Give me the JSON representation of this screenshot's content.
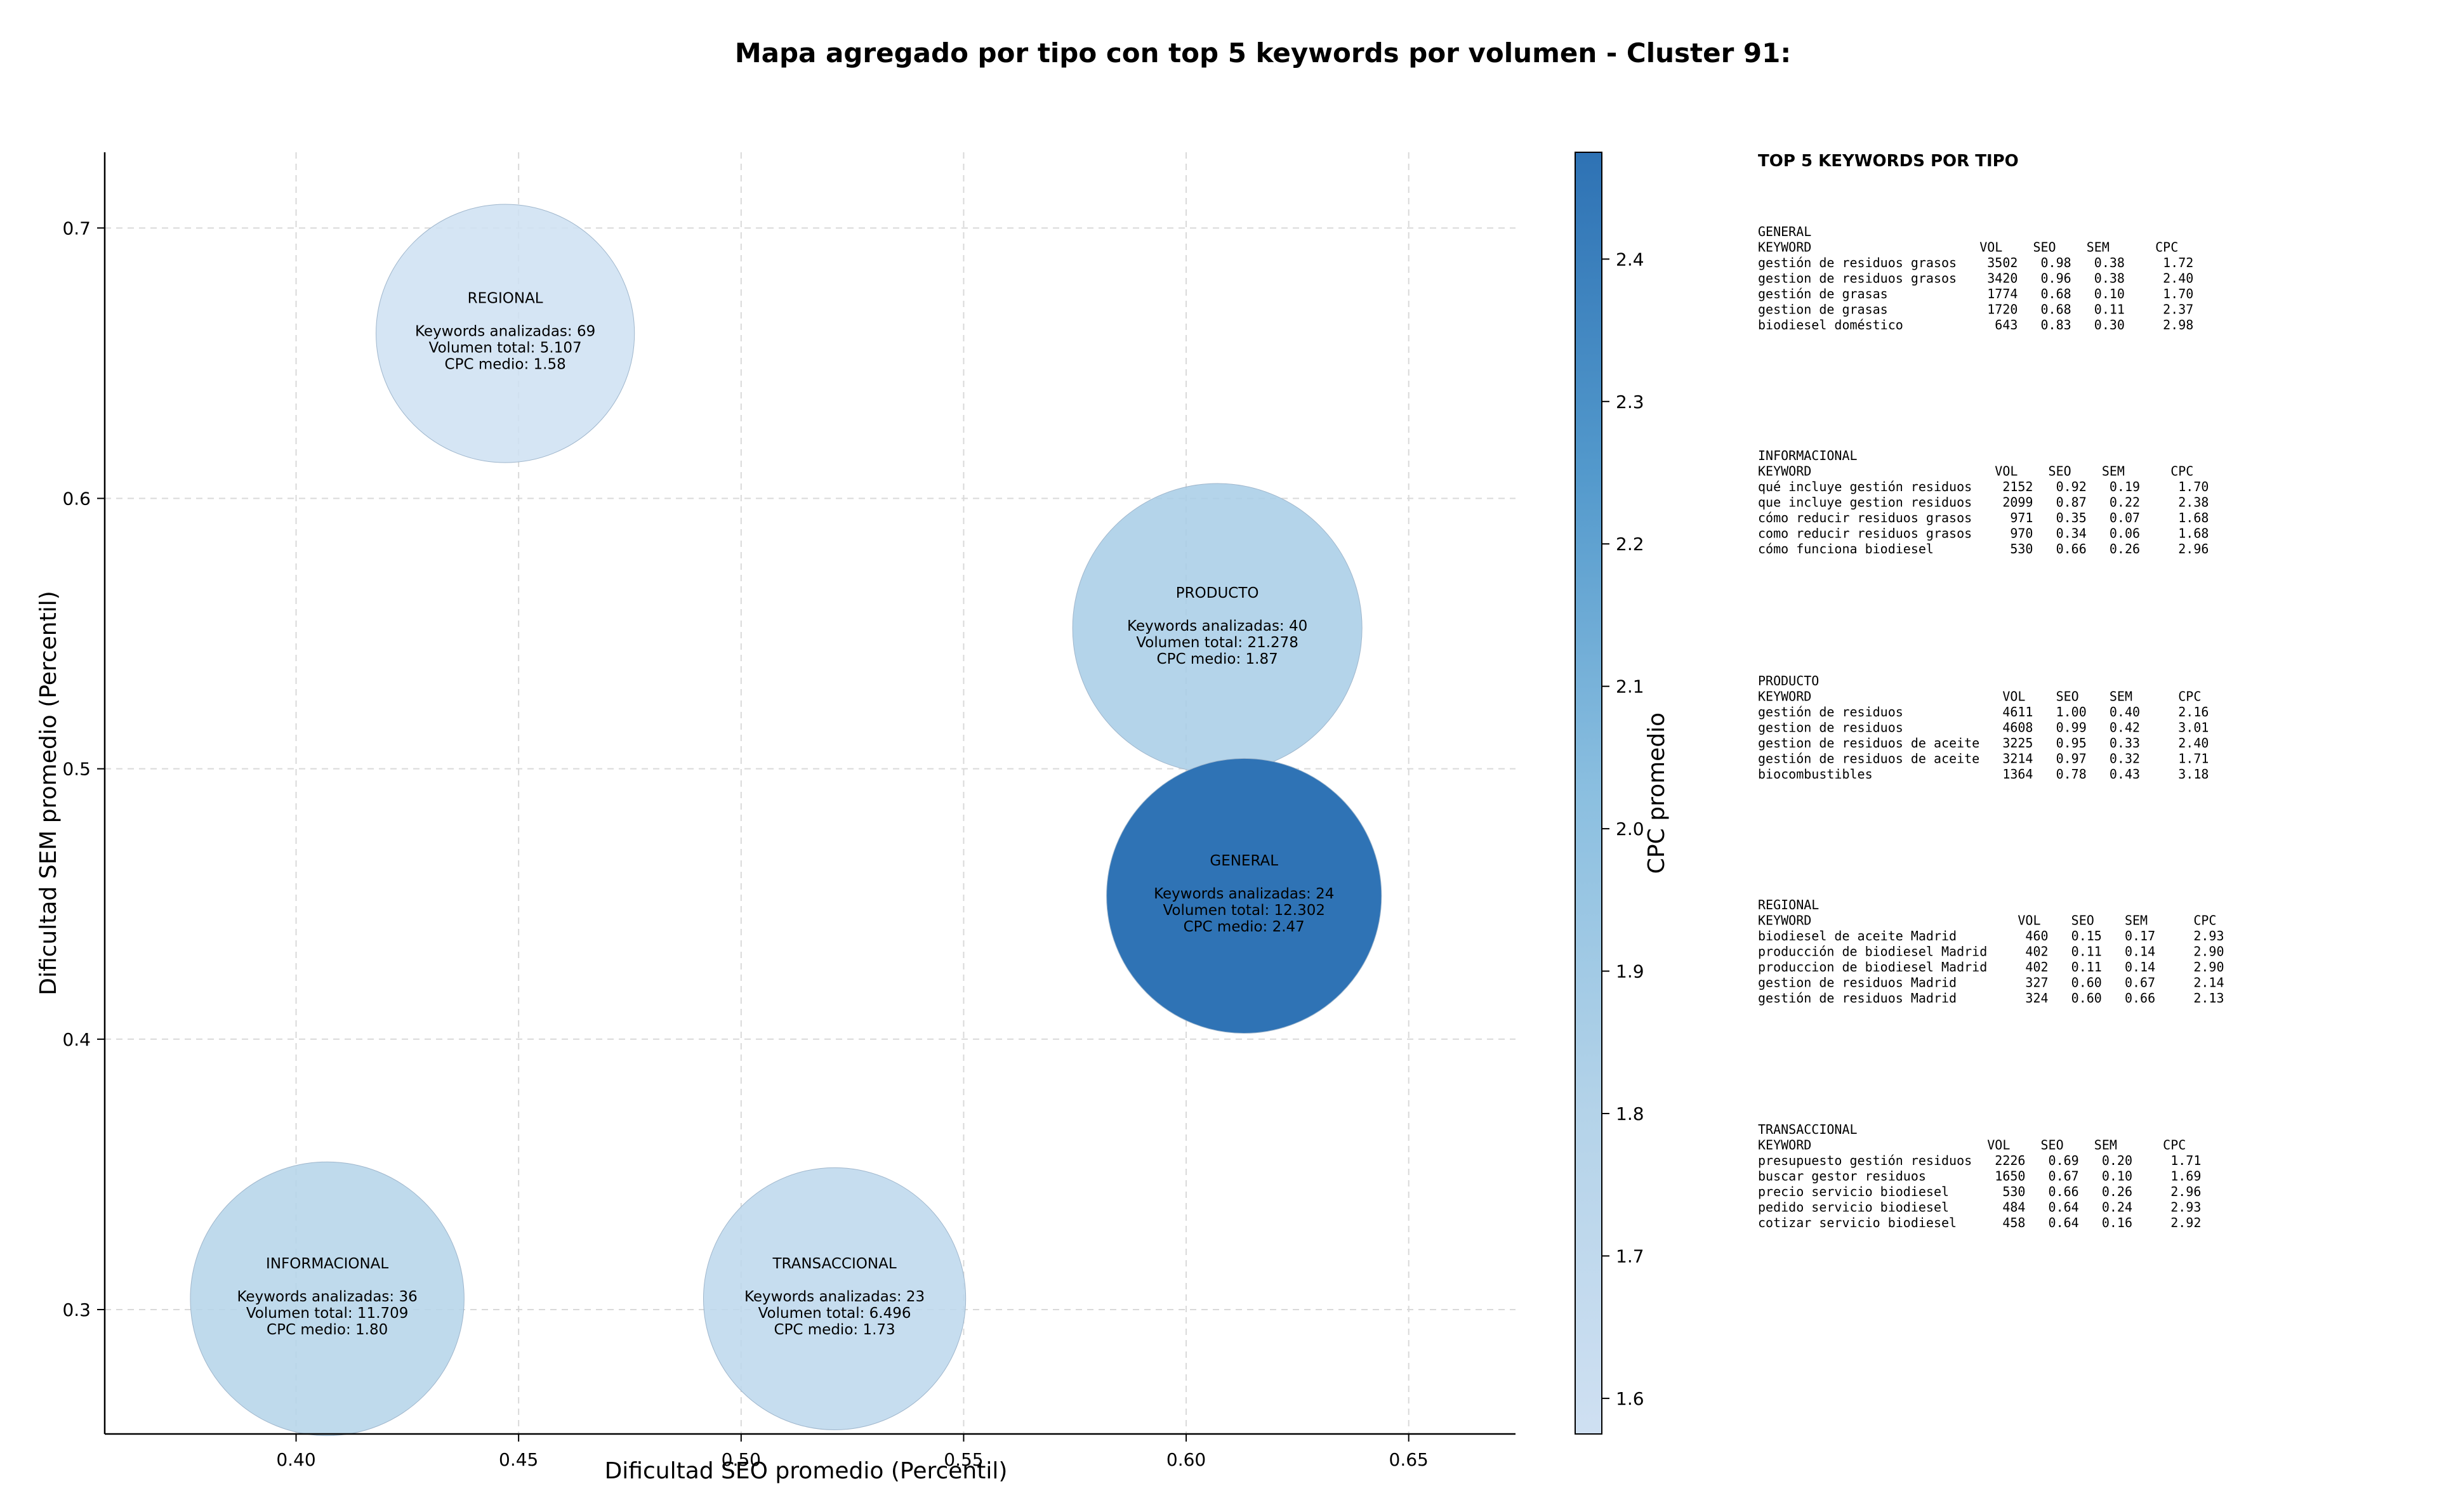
{
  "chart_data": {
    "type": "scatter",
    "title": "Mapa agregado por tipo con top 5 keywords por volumen - Cluster 91:",
    "xlabel": "Dificultad SEO promedio (Percentil)",
    "ylabel": "Dificultad SEM promedio (Percentil)",
    "xlim": [
      0.357,
      0.674
    ],
    "ylim": [
      0.254,
      0.728
    ],
    "xticks": [
      0.4,
      0.45,
      0.5,
      0.55,
      0.6,
      0.65
    ],
    "xtick_labels": [
      "0.40",
      "0.45",
      "0.50",
      "0.55",
      "0.60",
      "0.65"
    ],
    "yticks": [
      0.3,
      0.4,
      0.5,
      0.6,
      0.7
    ],
    "ytick_labels": [
      "0.3",
      "0.4",
      "0.5",
      "0.6",
      "0.7"
    ],
    "grid": true,
    "colorbar": {
      "label": "CPC promedio",
      "range": [
        1.575,
        2.475
      ],
      "ticks": [
        1.6,
        1.7,
        1.8,
        1.9,
        2.0,
        2.1,
        2.2,
        2.3,
        2.4
      ],
      "tick_labels": [
        "1.6",
        "1.7",
        "1.8",
        "1.9",
        "2.0",
        "2.1",
        "2.2",
        "2.3",
        "2.4"
      ]
    },
    "points": [
      {
        "name": "REGIONAL",
        "x": 0.447,
        "y": 0.661,
        "volume": 5107,
        "cpc": 1.58,
        "lines": [
          "Keywords analizadas: 69",
          "Volumen total: 5.107",
          "CPC medio: 1.58"
        ]
      },
      {
        "name": "PRODUCTO",
        "x": 0.607,
        "y": 0.552,
        "volume": 21278,
        "cpc": 1.87,
        "lines": [
          "Keywords analizadas: 40",
          "Volumen total: 21.278",
          "CPC medio: 1.87"
        ]
      },
      {
        "name": "GENERAL",
        "x": 0.613,
        "y": 0.453,
        "volume": 12302,
        "cpc": 2.47,
        "lines": [
          "Keywords analizadas: 24",
          "Volumen total: 12.302",
          "CPC medio: 2.47"
        ]
      },
      {
        "name": "INFORMACIONAL",
        "x": 0.407,
        "y": 0.304,
        "volume": 11709,
        "cpc": 1.8,
        "lines": [
          "Keywords analizadas: 36",
          "Volumen total: 11.709",
          "CPC medio: 1.80"
        ]
      },
      {
        "name": "TRANSACCIONAL",
        "x": 0.521,
        "y": 0.304,
        "volume": 6496,
        "cpc": 1.73,
        "lines": [
          "Keywords analizadas: 23",
          "Volumen total: 6.496",
          "CPC medio: 1.73"
        ]
      }
    ]
  },
  "side_panel": {
    "title": "TOP 5 KEYWORDS POR TIPO",
    "sections": [
      {
        "name": "GENERAL",
        "lines": [
          "KEYWORD                      VOL    SEO    SEM      CPC",
          "gestión de residuos grasos    3502   0.98   0.38     1.72",
          "gestion de residuos grasos    3420   0.96   0.38     2.40",
          "gestión de grasas             1774   0.68   0.10     1.70",
          "gestion de grasas             1720   0.68   0.11     2.37",
          "biodiesel doméstico            643   0.83   0.30     2.98"
        ]
      },
      {
        "name": "INFORMACIONAL",
        "lines": [
          "KEYWORD                        VOL    SEO    SEM      CPC",
          "qué incluye gestión residuos    2152   0.92   0.19     1.70",
          "que incluye gestion residuos    2099   0.87   0.22     2.38",
          "cómo reducir residuos grasos     971   0.35   0.07     1.68",
          "como reducir residuos grasos     970   0.34   0.06     1.68",
          "cómo funciona biodiesel          530   0.66   0.26     2.96"
        ]
      },
      {
        "name": "PRODUCTO",
        "lines": [
          "KEYWORD                         VOL    SEO    SEM      CPC",
          "gestión de residuos             4611   1.00   0.40     2.16",
          "gestion de residuos             4608   0.99   0.42     3.01",
          "gestion de residuos de aceite   3225   0.95   0.33     2.40",
          "gestión de residuos de aceite   3214   0.97   0.32     1.71",
          "biocombustibles                 1364   0.78   0.43     3.18"
        ]
      },
      {
        "name": "REGIONAL",
        "lines": [
          "KEYWORD                           VOL    SEO    SEM      CPC",
          "biodiesel de aceite Madrid         460   0.15   0.17     2.93",
          "producción de biodiesel Madrid     402   0.11   0.14     2.90",
          "produccion de biodiesel Madrid     402   0.11   0.14     2.90",
          "gestion de residuos Madrid         327   0.60   0.67     2.14",
          "gestión de residuos Madrid         324   0.60   0.66     2.13"
        ]
      },
      {
        "name": "TRANSACCIONAL",
        "lines": [
          "KEYWORD                       VOL    SEO    SEM      CPC",
          "presupuesto gestión residuos   2226   0.69   0.20     1.71",
          "buscar gestor residuos         1650   0.67   0.10     1.69",
          "precio servicio biodiesel       530   0.66   0.26     2.96",
          "pedido servicio biodiesel       484   0.64   0.24     2.93",
          "cotizar servicio biodiesel      458   0.64   0.16     2.92"
        ]
      }
    ]
  }
}
